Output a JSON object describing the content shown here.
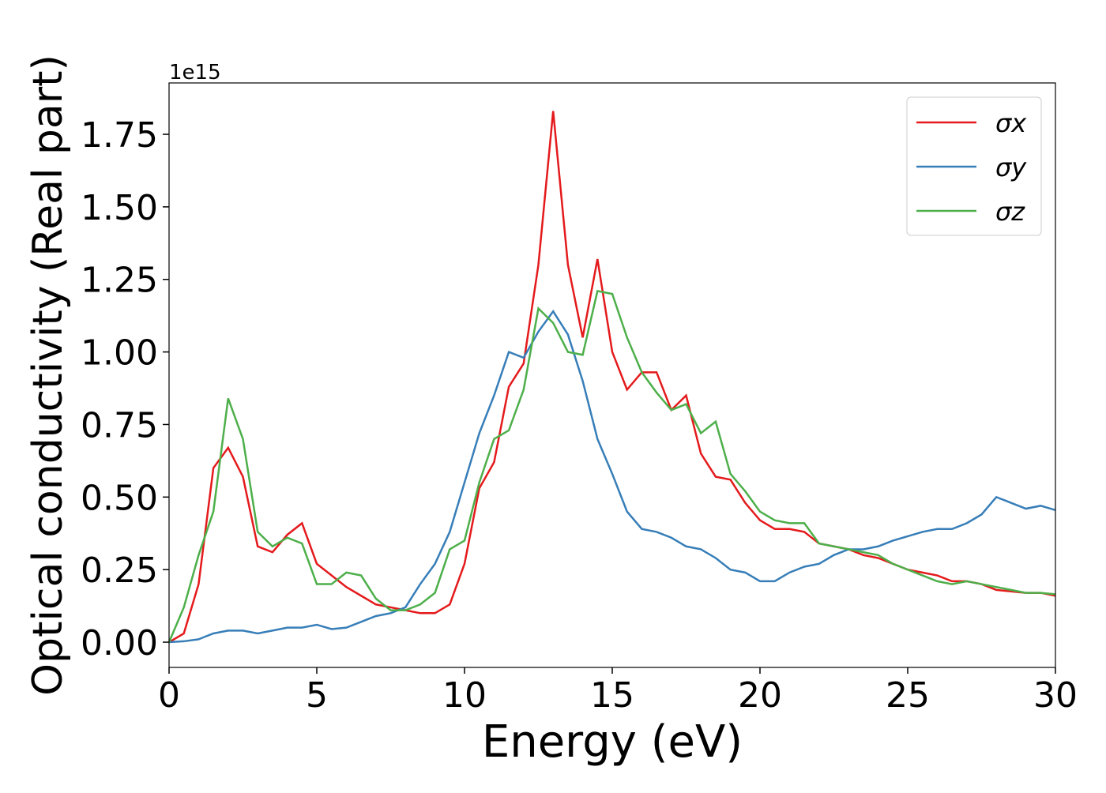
{
  "chart_data": {
    "type": "line",
    "xlabel": "Energy (eV)",
    "ylabel": "Optical conductivity (Real part)",
    "offset_label": "1e15",
    "x": [
      0,
      0.5,
      1,
      1.5,
      2,
      2.5,
      3,
      3.5,
      4,
      4.5,
      5,
      5.5,
      6,
      6.5,
      7,
      7.5,
      8,
      8.5,
      9,
      9.5,
      10,
      10.5,
      11,
      11.5,
      12,
      12.5,
      13,
      13.5,
      14,
      14.5,
      15,
      15.5,
      16,
      16.5,
      17,
      17.5,
      18,
      18.5,
      19,
      19.5,
      20,
      20.5,
      21,
      21.5,
      22,
      22.5,
      23,
      23.5,
      24,
      24.5,
      25,
      25.5,
      26,
      26.5,
      27,
      27.5,
      28,
      28.5,
      29,
      29.5,
      30
    ],
    "series": [
      {
        "name": "σx",
        "color": "#e41a1c",
        "values": [
          0,
          0.03,
          0.2,
          0.6,
          0.67,
          0.57,
          0.33,
          0.31,
          0.37,
          0.41,
          0.27,
          0.23,
          0.19,
          0.16,
          0.13,
          0.12,
          0.11,
          0.1,
          0.1,
          0.13,
          0.27,
          0.53,
          0.62,
          0.88,
          0.96,
          1.3,
          1.83,
          1.3,
          1.05,
          1.32,
          1.0,
          0.87,
          0.93,
          0.93,
          0.8,
          0.85,
          0.65,
          0.57,
          0.56,
          0.48,
          0.42,
          0.39,
          0.39,
          0.38,
          0.34,
          0.33,
          0.32,
          0.3,
          0.29,
          0.27,
          0.25,
          0.24,
          0.23,
          0.21,
          0.21,
          0.2,
          0.18,
          0.175,
          0.17,
          0.17,
          0.16
        ]
      },
      {
        "name": "σy",
        "color": "#377eb8",
        "values": [
          0,
          0.003,
          0.01,
          0.03,
          0.04,
          0.04,
          0.03,
          0.04,
          0.05,
          0.05,
          0.06,
          0.045,
          0.05,
          0.07,
          0.09,
          0.1,
          0.12,
          0.2,
          0.27,
          0.38,
          0.55,
          0.72,
          0.85,
          1.0,
          0.98,
          1.07,
          1.14,
          1.06,
          0.9,
          0.7,
          0.58,
          0.45,
          0.39,
          0.38,
          0.36,
          0.33,
          0.32,
          0.29,
          0.25,
          0.24,
          0.21,
          0.21,
          0.24,
          0.26,
          0.27,
          0.3,
          0.32,
          0.32,
          0.33,
          0.35,
          0.365,
          0.38,
          0.39,
          0.39,
          0.41,
          0.44,
          0.5,
          0.48,
          0.46,
          0.47,
          0.455
        ]
      },
      {
        "name": "σz",
        "color": "#4daf4a",
        "values": [
          0,
          0.12,
          0.3,
          0.45,
          0.84,
          0.7,
          0.38,
          0.33,
          0.36,
          0.34,
          0.2,
          0.2,
          0.24,
          0.23,
          0.15,
          0.11,
          0.11,
          0.13,
          0.17,
          0.32,
          0.35,
          0.55,
          0.7,
          0.73,
          0.87,
          1.15,
          1.1,
          1.0,
          0.99,
          1.21,
          1.2,
          1.05,
          0.93,
          0.86,
          0.8,
          0.82,
          0.72,
          0.76,
          0.58,
          0.52,
          0.45,
          0.42,
          0.41,
          0.41,
          0.34,
          0.33,
          0.32,
          0.31,
          0.3,
          0.27,
          0.25,
          0.23,
          0.21,
          0.2,
          0.21,
          0.2,
          0.19,
          0.18,
          0.17,
          0.17,
          0.165
        ]
      }
    ],
    "xlim": [
      0,
      30
    ],
    "xticks": [
      0,
      5,
      10,
      15,
      20,
      25,
      30
    ],
    "ylim": [
      -0.087,
      1.927
    ],
    "yticks": [
      {
        "value": 0,
        "label": "0.00"
      },
      0.25,
      {
        "value": 0.5,
        "label": "0.50"
      },
      0.75,
      {
        "value": 1,
        "label": "1.00"
      },
      1.25,
      {
        "value": 1.5,
        "label": "1.50"
      },
      1.75
    ],
    "legend": "upper right",
    "grid": false
  }
}
